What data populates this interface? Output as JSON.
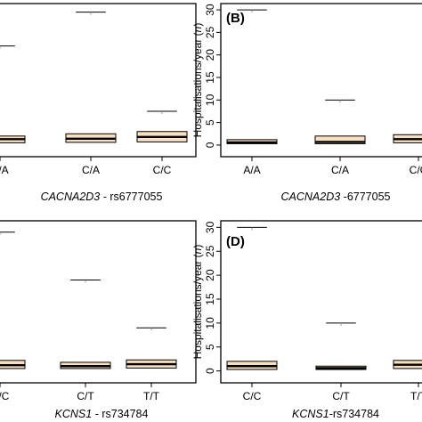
{
  "colors": {
    "box_fill": "#f7dfc0",
    "stroke": "#000000"
  },
  "chart_data": [
    {
      "type": "box",
      "panel_label": "",
      "xlabel": {
        "gene": "CACNA2D3",
        "rest": " - rs6777055"
      },
      "ylabel": "",
      "categories": [
        "A/A",
        "C/A",
        "C/C"
      ],
      "ylim": [
        -1,
        31
      ],
      "yticks": [],
      "boxes": [
        {
          "q1": 0.5,
          "median": 1.3,
          "q3": 2.0,
          "outliers": [
            22
          ]
        },
        {
          "q1": 0.6,
          "median": 1.4,
          "q3": 2.5,
          "outliers": [
            29.5
          ]
        },
        {
          "q1": 0.7,
          "median": 1.8,
          "q3": 3.0,
          "outliers": [
            7.5
          ]
        }
      ]
    },
    {
      "type": "box",
      "panel_label": "(B)",
      "xlabel": {
        "gene": "CACNA2D3",
        "rest": " -6777055"
      },
      "ylabel": {
        "text": "Hospitalisations/year (",
        "italic": "n",
        "close": ")"
      },
      "categories": [
        "A/A",
        "C/A",
        "C/C"
      ],
      "ylim": [
        -1,
        31
      ],
      "yticks": [
        "0",
        "5",
        "10",
        "15",
        "20",
        "25",
        "30"
      ],
      "boxes": [
        {
          "q1": 0.3,
          "median": 0.6,
          "q3": 1.2,
          "outliers": [
            30
          ]
        },
        {
          "q1": 0.3,
          "median": 0.7,
          "q3": 2.0,
          "outliers": [
            10
          ]
        },
        {
          "q1": 0.5,
          "median": 1.3,
          "q3": 2.3,
          "outliers": []
        }
      ]
    },
    {
      "type": "box",
      "panel_label": "",
      "xlabel": {
        "gene": "KCNS1",
        "rest": " - rs734784"
      },
      "ylabel": "",
      "categories": [
        "C/C",
        "C/T",
        "T/T"
      ],
      "ylim": [
        -1,
        31
      ],
      "yticks": [],
      "boxes": [
        {
          "q1": 0.5,
          "median": 1.2,
          "q3": 2.2,
          "outliers": [
            29
          ]
        },
        {
          "q1": 0.5,
          "median": 1.0,
          "q3": 1.8,
          "outliers": [
            19
          ]
        },
        {
          "q1": 0.6,
          "median": 1.4,
          "q3": 2.3,
          "outliers": [
            9
          ]
        }
      ]
    },
    {
      "type": "box",
      "panel_label": "(D)",
      "xlabel": {
        "gene": "KCNS1",
        "rest": "-rs734784"
      },
      "ylabel": {
        "text": "Hospitalisations/year (",
        "italic": "n",
        "close": ")"
      },
      "categories": [
        "C/C",
        "C/T",
        "T/T"
      ],
      "ylim": [
        -1,
        31
      ],
      "yticks": [
        "0",
        "5",
        "10",
        "15",
        "20",
        "25",
        "30"
      ],
      "boxes": [
        {
          "q1": 0.3,
          "median": 1.0,
          "q3": 2.0,
          "outliers": [
            30
          ]
        },
        {
          "q1": 0.3,
          "median": 0.6,
          "q3": 1.0,
          "outliers": [
            10
          ]
        },
        {
          "q1": 0.5,
          "median": 1.3,
          "q3": 2.2,
          "outliers": []
        }
      ]
    }
  ]
}
